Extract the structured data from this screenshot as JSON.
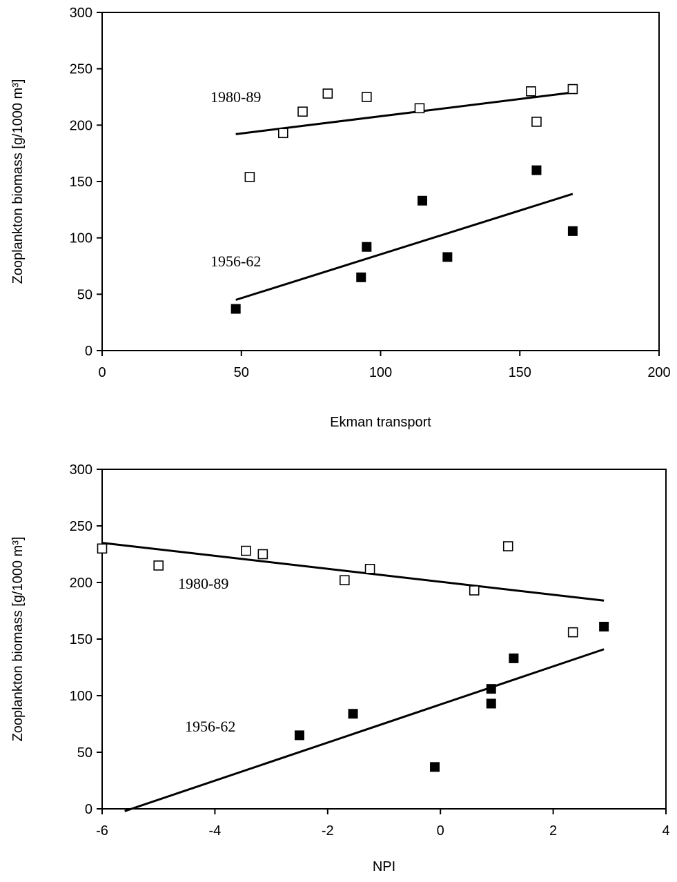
{
  "chart_data": [
    {
      "type": "scatter",
      "title": "",
      "xlabel": "Ekman transport",
      "ylabel": "Zooplankton biomass [g/1000 m³]",
      "xlim": [
        0,
        200
      ],
      "ylim": [
        0,
        300
      ],
      "x_ticks": [
        "0",
        "50",
        "100",
        "150",
        "200"
      ],
      "y_ticks": [
        "0",
        "50",
        "100",
        "150",
        "200",
        "250",
        "300"
      ],
      "grid": false,
      "series": [
        {
          "name": "1980-89",
          "marker": "open-square",
          "points": [
            [
              53,
              154
            ],
            [
              65,
              193
            ],
            [
              72,
              212
            ],
            [
              81,
              228
            ],
            [
              95,
              225
            ],
            [
              114,
              215
            ],
            [
              154,
              230
            ],
            [
              156,
              203
            ],
            [
              169,
              232
            ]
          ],
          "trend": [
            [
              48,
              192
            ],
            [
              169,
              229
            ]
          ]
        },
        {
          "name": "1956-62",
          "marker": "filled-square",
          "points": [
            [
              48,
              37
            ],
            [
              93,
              65
            ],
            [
              95,
              92
            ],
            [
              115,
              133
            ],
            [
              124,
              83
            ],
            [
              156,
              160
            ],
            [
              169,
              106
            ]
          ],
          "trend": [
            [
              48,
              45
            ],
            [
              169,
              139
            ]
          ]
        }
      ]
    },
    {
      "type": "scatter",
      "title": "",
      "xlabel": "NPI",
      "ylabel": "Zooplankton biomass [g/1000 m³]",
      "xlim": [
        -6,
        4
      ],
      "ylim": [
        0,
        300
      ],
      "x_ticks": [
        "-6",
        "-4",
        "-2",
        "0",
        "2",
        "4"
      ],
      "y_ticks": [
        "0",
        "50",
        "100",
        "150",
        "200",
        "250",
        "300"
      ],
      "grid": false,
      "series": [
        {
          "name": "1980-89",
          "marker": "open-square",
          "points": [
            [
              -6.0,
              230
            ],
            [
              -5.0,
              215
            ],
            [
              -3.45,
              228
            ],
            [
              -3.15,
              225
            ],
            [
              -1.7,
              202
            ],
            [
              -1.25,
              212
            ],
            [
              0.6,
              193
            ],
            [
              1.2,
              232
            ],
            [
              2.35,
              156
            ]
          ],
          "trend": [
            [
              -6.0,
              235
            ],
            [
              2.9,
              184
            ]
          ]
        },
        {
          "name": "1956-62",
          "marker": "filled-square",
          "points": [
            [
              -2.5,
              65
            ],
            [
              -1.55,
              84
            ],
            [
              -0.1,
              37
            ],
            [
              0.9,
              93
            ],
            [
              0.9,
              106
            ],
            [
              1.3,
              133
            ],
            [
              2.9,
              161
            ]
          ],
          "trend": [
            [
              -5.6,
              -2
            ],
            [
              2.9,
              141
            ]
          ]
        }
      ]
    }
  ]
}
